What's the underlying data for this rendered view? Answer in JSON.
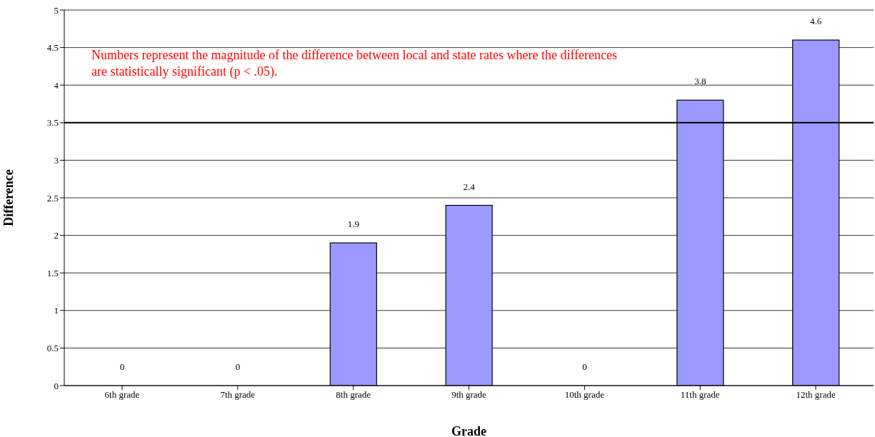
{
  "chart_data": {
    "type": "bar",
    "xlabel": "Grade",
    "ylabel": "Difference",
    "categories": [
      "6th grade",
      "7th grade",
      "8th grade",
      "9th grade",
      "10th grade",
      "11th grade",
      "12th grade"
    ],
    "values": [
      0,
      0,
      1.9,
      2.4,
      0,
      3.8,
      4.6
    ],
    "color": "#9999ff",
    "ylim": [
      0,
      5
    ],
    "yticks": [
      0,
      0.5,
      1,
      1.5,
      2,
      2.5,
      3,
      3.5,
      4,
      4.5,
      5
    ],
    "grid": "y",
    "data_labels": true,
    "ref_lines": [
      {
        "axis": "y",
        "value": 3.5,
        "color": "#000000"
      }
    ],
    "annotations": [
      "Numbers represent the magnitude of the difference between local and state rates where the differences are statistically significant (p < .05)."
    ]
  }
}
